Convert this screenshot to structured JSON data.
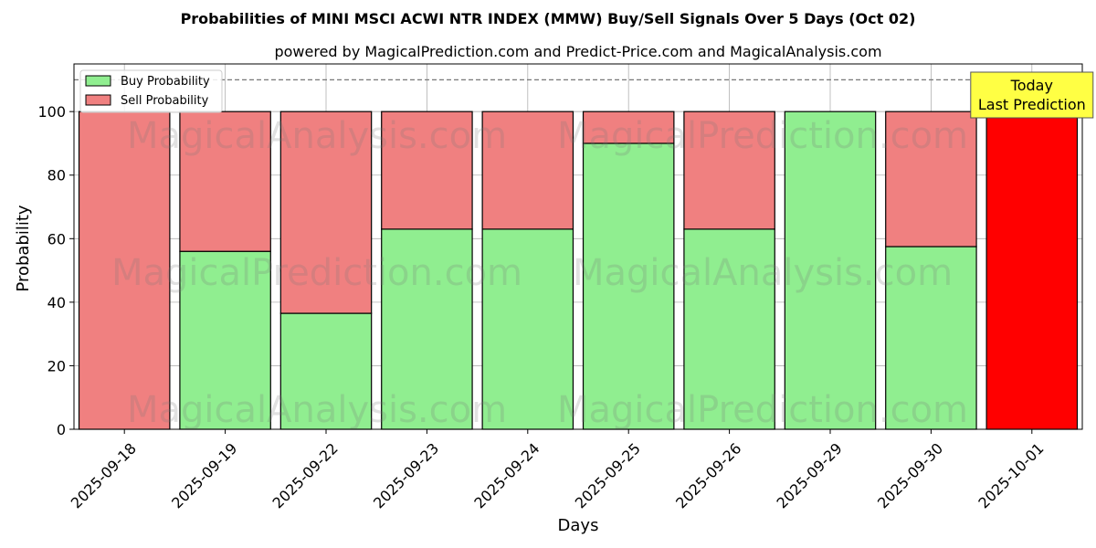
{
  "chart_data": {
    "type": "bar",
    "stacked": true,
    "title": "Probabilities of MINI MSCI ACWI NTR INDEX (MMW) Buy/Sell Signals Over 5 Days (Oct 02)",
    "subtitle": "powered by MagicalPrediction.com and Predict-Price.com and MagicalAnalysis.com",
    "xlabel": "Days",
    "ylabel": "Probability",
    "ylim": [
      0,
      115
    ],
    "yticks": [
      0,
      20,
      40,
      60,
      80,
      100
    ],
    "reference_line": 110,
    "grid": true,
    "legend_position": "top-left",
    "categories": [
      "2025-09-18",
      "2025-09-19",
      "2025-09-22",
      "2025-09-23",
      "2025-09-24",
      "2025-09-25",
      "2025-09-26",
      "2025-09-29",
      "2025-09-30",
      "2025-10-01"
    ],
    "series": [
      {
        "name": "Buy Probability",
        "color": "#90ee90",
        "values": [
          0,
          56,
          36.5,
          63,
          63,
          90,
          63,
          100,
          57.5,
          0
        ]
      },
      {
        "name": "Sell Probability",
        "color": "#f08080",
        "values": [
          100,
          44,
          63.5,
          37,
          37,
          10,
          37,
          0,
          42.5,
          100
        ]
      }
    ],
    "highlight": {
      "index": 9,
      "color": "#ff0000"
    },
    "annotation": {
      "lines": [
        "Today",
        "Last Prediction"
      ],
      "background": "#ffff44"
    },
    "watermarks": [
      "MagicalAnalysis.com",
      "MagicalPrediction.com"
    ]
  }
}
